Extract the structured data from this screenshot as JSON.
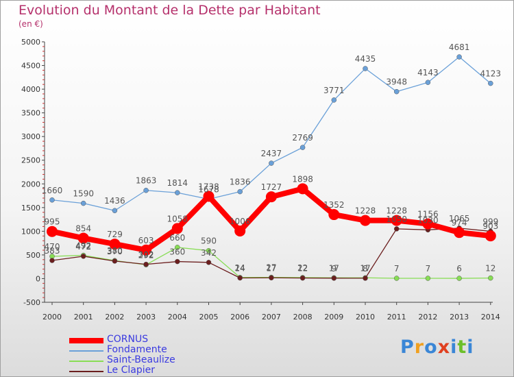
{
  "title": "Evolution du Montant de la Dette par Habitant",
  "subtitle": "(en €)",
  "logo": {
    "text": "Proxiti",
    "colors": [
      "#3a86d6",
      "#f0a020",
      "#3a86d6",
      "#e04020",
      "#3a86d6",
      "#6cbf2a",
      "#3a86d6"
    ]
  },
  "chart_data": {
    "type": "line",
    "title": "Evolution du Montant de la Dette par Habitant",
    "subtitle": "(en €)",
    "x": [
      "2000",
      "2001",
      "2002",
      "2003",
      "2004",
      "2005",
      "2006",
      "2007",
      "2008",
      "2009",
      "2010",
      "2011",
      "2012",
      "2013",
      "2014"
    ],
    "ylim": [
      -500,
      5000
    ],
    "yticks": [
      -500,
      0,
      500,
      1000,
      1500,
      2000,
      2500,
      3000,
      3500,
      4000,
      4500,
      5000
    ],
    "grid": false,
    "legend_position": "bottom-left",
    "series": [
      {
        "name": "CORNUS",
        "color": "#ff0000",
        "width": 8,
        "marker": 8,
        "values": [
          995,
          854,
          729,
          603,
          1058,
          1738,
          1006,
          1727,
          1898,
          1352,
          1228,
          1228,
          1156,
          974,
          903
        ],
        "labels": [
          "995",
          "854",
          "729",
          "603",
          "1058",
          "1738",
          "1006",
          "1727",
          "1898",
          "1352",
          "1228",
          "1228",
          "1156",
          "974",
          "903"
        ]
      },
      {
        "name": "Fondamente",
        "color": "#6aa0d8",
        "width": 1.3,
        "marker": 3.5,
        "values": [
          1660,
          1590,
          1436,
          1863,
          1814,
          1678,
          1836,
          2437,
          2769,
          3771,
          4435,
          3948,
          4143,
          4681,
          4123
        ],
        "labels": [
          "1660",
          "1590",
          "1436",
          "1863",
          "1814",
          "1678",
          "1836",
          "2437",
          "2769",
          "3771",
          "4435",
          "3948",
          "4143",
          "4681",
          "4123"
        ]
      },
      {
        "name": "Saint-Beaulize",
        "color": "#88dd55",
        "width": 1.3,
        "marker": 3.5,
        "values": [
          470,
          492,
          380,
          292,
          660,
          590,
          24,
          27,
          22,
          17,
          17,
          7,
          7,
          6,
          12
        ],
        "labels": [
          "470",
          "492",
          "380",
          "292",
          "660",
          "590",
          "24",
          "27",
          "22",
          "17",
          "17",
          "7",
          "7",
          "6",
          "12"
        ]
      },
      {
        "name": "Le Clapier",
        "color": "#6b1e1e",
        "width": 1.3,
        "marker": 3.5,
        "values": [
          383,
          472,
          370,
          302,
          360,
          342,
          14,
          17,
          12,
          9,
          8,
          1050,
          1030,
          1065,
          999
        ],
        "labels": [
          "383",
          "472",
          "370",
          "302",
          "360",
          "342",
          "14",
          "17",
          "12",
          "9",
          "8",
          "1050",
          "1030",
          "1065",
          "999"
        ]
      }
    ]
  }
}
